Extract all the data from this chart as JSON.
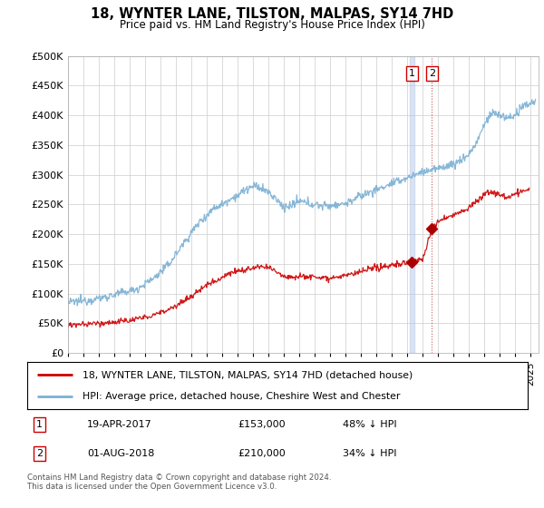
{
  "title": "18, WYNTER LANE, TILSTON, MALPAS, SY14 7HD",
  "subtitle": "Price paid vs. HM Land Registry's House Price Index (HPI)",
  "legend_line1": "18, WYNTER LANE, TILSTON, MALPAS, SY14 7HD (detached house)",
  "legend_line2": "HPI: Average price, detached house, Cheshire West and Chester",
  "transaction1_date": "19-APR-2017",
  "transaction1_price": "£153,000",
  "transaction1_pct": "48% ↓ HPI",
  "transaction2_date": "01-AUG-2018",
  "transaction2_price": "£210,000",
  "transaction2_pct": "34% ↓ HPI",
  "footnote": "Contains HM Land Registry data © Crown copyright and database right 2024.\nThis data is licensed under the Open Government Licence v3.0.",
  "hpi_color": "#7ab0d4",
  "price_color": "#cc0000",
  "marker_color": "#aa0000",
  "vline1_color": "#aaaacc",
  "vline2_color": "#cc2222",
  "background_color": "#ffffff",
  "grid_color": "#cccccc",
  "ylim": [
    0,
    500000
  ],
  "yticks": [
    0,
    50000,
    100000,
    150000,
    200000,
    250000,
    300000,
    350000,
    400000,
    450000,
    500000
  ],
  "xlim_start": 1995.0,
  "xlim_end": 2025.5,
  "t1_x": 2017.29,
  "t1_y": 153000,
  "t2_x": 2018.58,
  "t2_y": 210000
}
